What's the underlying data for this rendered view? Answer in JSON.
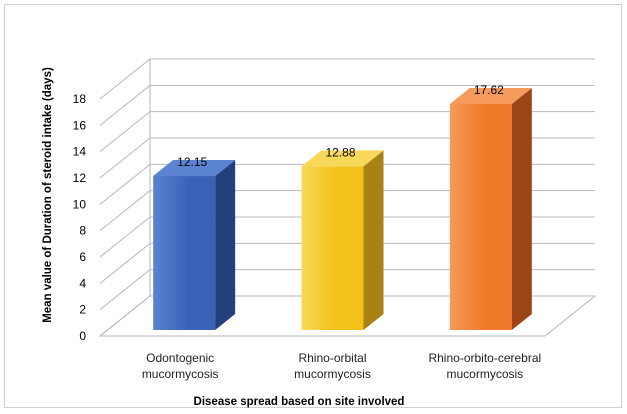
{
  "chart_data": {
    "type": "bar",
    "style": "3d-column",
    "categories": [
      [
        "Odontogenic",
        "mucormycosis"
      ],
      [
        "Rhino-orbital",
        "mucormycosis"
      ],
      [
        "Rhino-orbito-cerebral",
        "mucormycosis"
      ]
    ],
    "values": [
      12.15,
      12.88,
      17.62
    ],
    "value_labels": [
      "12.15",
      "12.88",
      "17.62"
    ],
    "xlabel": "Disease spread based on site involved",
    "ylabel": "Mean value of Duration of steroid intake (days)",
    "ylim": [
      0,
      18
    ],
    "yticks": [
      0,
      2,
      4,
      6,
      8,
      10,
      12,
      14,
      16,
      18
    ],
    "grid": true,
    "legend": "none",
    "colors": {
      "bars": [
        {
          "front": "#3a63b8",
          "side": "#243f7e",
          "top": "#5b83d2"
        },
        {
          "front": "#f3c21a",
          "side": "#a88313",
          "top": "#f8d85a"
        },
        {
          "front": "#f07a2a",
          "side": "#9c4517",
          "top": "#f59a5a"
        }
      ],
      "grid": "#b8b8b8"
    }
  }
}
